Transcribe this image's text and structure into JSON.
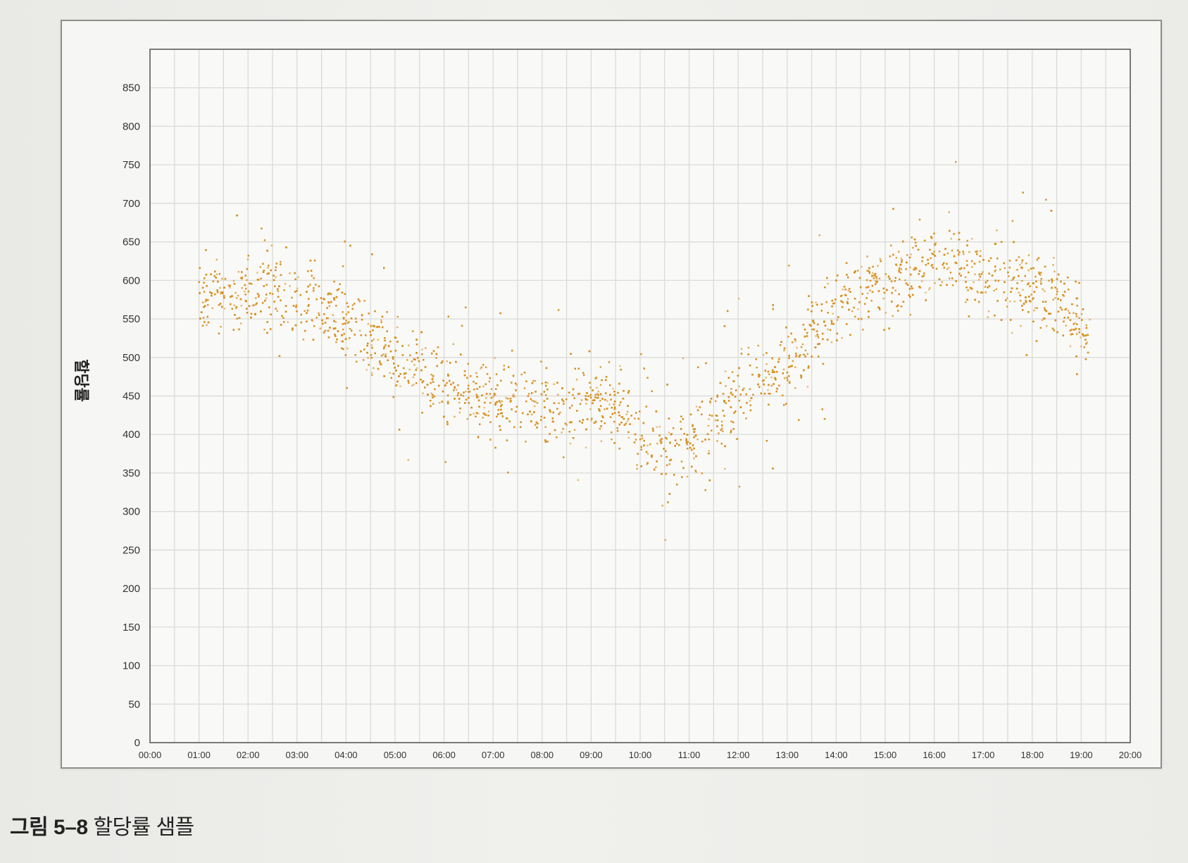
{
  "caption": {
    "label": "그림 5–8",
    "title": "할당률 샘플"
  },
  "chart_data": {
    "type": "scatter",
    "title": "",
    "xlabel": "",
    "ylabel": "할당률",
    "x_unit": "hour",
    "x_ticks": [
      "00:00",
      "01:00",
      "02:00",
      "03:00",
      "04:00",
      "05:00",
      "06:00",
      "07:00",
      "08:00",
      "09:00",
      "10:00",
      "11:00",
      "12:00",
      "13:00",
      "14:00",
      "15:00",
      "16:00",
      "17:00",
      "18:00",
      "19:00",
      "20:00"
    ],
    "xlim": [
      0,
      20
    ],
    "y_ticks": [
      0,
      50,
      100,
      150,
      200,
      250,
      300,
      350,
      400,
      450,
      500,
      550,
      600,
      650,
      700,
      750,
      800,
      850
    ],
    "ylim": [
      0,
      900
    ],
    "grid": true,
    "point_color": "#d9901f",
    "series": [
      {
        "trend": [
          {
            "x": 1.0,
            "y": 580
          },
          {
            "x": 1.5,
            "y": 585
          },
          {
            "x": 2.0,
            "y": 590
          },
          {
            "x": 2.5,
            "y": 585
          },
          {
            "x": 3.0,
            "y": 575
          },
          {
            "x": 3.5,
            "y": 560
          },
          {
            "x": 4.0,
            "y": 545
          },
          {
            "x": 4.5,
            "y": 525
          },
          {
            "x": 5.0,
            "y": 505
          },
          {
            "x": 5.5,
            "y": 480
          },
          {
            "x": 6.0,
            "y": 460
          },
          {
            "x": 6.5,
            "y": 450
          },
          {
            "x": 7.0,
            "y": 445
          },
          {
            "x": 7.5,
            "y": 440
          },
          {
            "x": 8.0,
            "y": 440
          },
          {
            "x": 8.5,
            "y": 438
          },
          {
            "x": 9.0,
            "y": 440
          },
          {
            "x": 9.5,
            "y": 440
          },
          {
            "x": 10.0,
            "y": 395
          },
          {
            "x": 10.5,
            "y": 375
          },
          {
            "x": 11.0,
            "y": 390
          },
          {
            "x": 11.5,
            "y": 420
          },
          {
            "x": 12.0,
            "y": 450
          },
          {
            "x": 12.5,
            "y": 470
          },
          {
            "x": 13.0,
            "y": 490
          },
          {
            "x": 13.5,
            "y": 530
          },
          {
            "x": 14.0,
            "y": 560
          },
          {
            "x": 14.5,
            "y": 585
          },
          {
            "x": 15.0,
            "y": 600
          },
          {
            "x": 15.5,
            "y": 615
          },
          {
            "x": 16.0,
            "y": 625
          },
          {
            "x": 16.5,
            "y": 630
          },
          {
            "x": 17.0,
            "y": 620
          },
          {
            "x": 17.5,
            "y": 600
          },
          {
            "x": 18.0,
            "y": 590
          },
          {
            "x": 18.5,
            "y": 575
          },
          {
            "x": 19.0,
            "y": 545
          },
          {
            "x": 19.2,
            "y": 530
          }
        ],
        "spread": 35,
        "outlier_range": [
          250,
          790
        ]
      }
    ]
  }
}
